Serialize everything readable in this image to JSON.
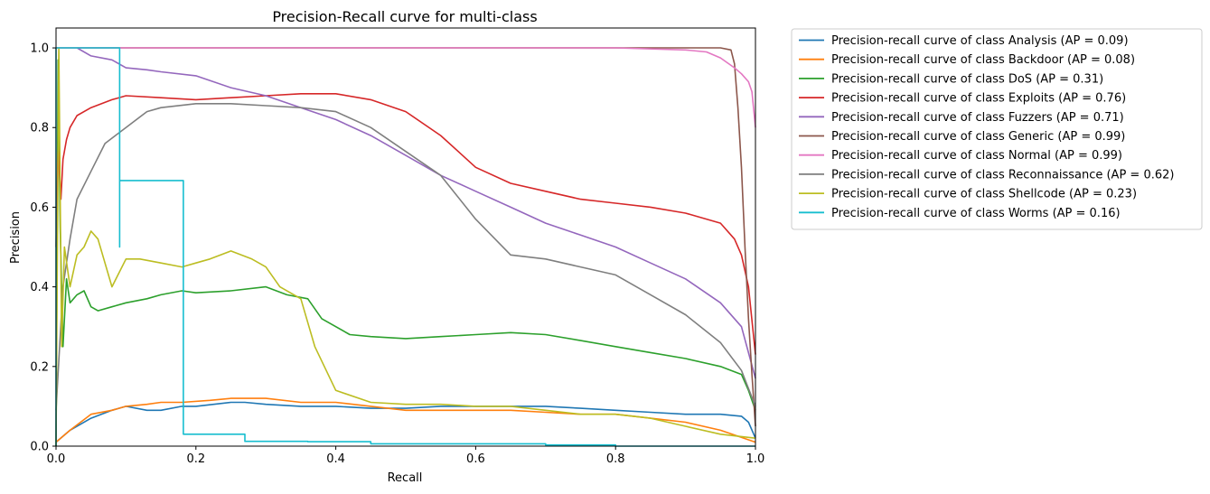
{
  "chart_data": {
    "type": "line",
    "title": "Precision-Recall curve for multi-class",
    "xlabel": "Recall",
    "ylabel": "Precision",
    "xlim": [
      0.0,
      1.0
    ],
    "ylim": [
      0.0,
      1.05
    ],
    "xticks": [
      "0.0",
      "0.2",
      "0.4",
      "0.6",
      "0.8",
      "1.0"
    ],
    "yticks": [
      "0.0",
      "0.2",
      "0.4",
      "0.6",
      "0.8",
      "1.0"
    ],
    "grid": false,
    "legend_position": "outside-upper-right",
    "series": [
      {
        "name": "Precision-recall curve of class Analysis (AP = 0.09)",
        "color": "#1f77b4",
        "x": [
          0.0,
          0.02,
          0.05,
          0.08,
          0.1,
          0.13,
          0.15,
          0.18,
          0.2,
          0.25,
          0.27,
          0.3,
          0.35,
          0.4,
          0.45,
          0.5,
          0.55,
          0.6,
          0.65,
          0.7,
          0.75,
          0.8,
          0.85,
          0.9,
          0.95,
          0.98,
          0.99,
          1.0
        ],
        "y": [
          0.01,
          0.04,
          0.07,
          0.09,
          0.1,
          0.09,
          0.09,
          0.1,
          0.1,
          0.11,
          0.11,
          0.105,
          0.1,
          0.1,
          0.095,
          0.095,
          0.1,
          0.1,
          0.1,
          0.1,
          0.095,
          0.09,
          0.085,
          0.08,
          0.08,
          0.075,
          0.06,
          0.02
        ]
      },
      {
        "name": "Precision-recall curve of class Backdoor (AP = 0.08)",
        "color": "#ff7f0e",
        "x": [
          0.0,
          0.02,
          0.05,
          0.08,
          0.1,
          0.13,
          0.15,
          0.18,
          0.22,
          0.25,
          0.28,
          0.3,
          0.35,
          0.4,
          0.45,
          0.5,
          0.55,
          0.6,
          0.65,
          0.7,
          0.75,
          0.8,
          0.85,
          0.9,
          0.95,
          1.0
        ],
        "y": [
          0.01,
          0.04,
          0.08,
          0.09,
          0.1,
          0.105,
          0.11,
          0.11,
          0.115,
          0.12,
          0.12,
          0.12,
          0.11,
          0.11,
          0.1,
          0.09,
          0.09,
          0.09,
          0.09,
          0.085,
          0.08,
          0.08,
          0.07,
          0.06,
          0.04,
          0.01
        ]
      },
      {
        "name": "Precision-recall curve of class DoS (AP = 0.31)",
        "color": "#2ca02c",
        "x": [
          0.0,
          0.003,
          0.006,
          0.01,
          0.015,
          0.02,
          0.03,
          0.04,
          0.05,
          0.06,
          0.08,
          0.1,
          0.13,
          0.15,
          0.18,
          0.2,
          0.25,
          0.3,
          0.33,
          0.36,
          0.38,
          0.42,
          0.45,
          0.5,
          0.55,
          0.6,
          0.65,
          0.7,
          0.75,
          0.8,
          0.85,
          0.9,
          0.95,
          0.98,
          0.99,
          1.0
        ],
        "y": [
          0.0,
          0.97,
          0.55,
          0.25,
          0.42,
          0.36,
          0.38,
          0.39,
          0.35,
          0.34,
          0.35,
          0.36,
          0.37,
          0.38,
          0.39,
          0.385,
          0.39,
          0.4,
          0.38,
          0.37,
          0.32,
          0.28,
          0.275,
          0.27,
          0.275,
          0.28,
          0.285,
          0.28,
          0.265,
          0.25,
          0.235,
          0.22,
          0.2,
          0.18,
          0.14,
          0.09
        ]
      },
      {
        "name": "Precision-recall curve of class Exploits (AP = 0.76)",
        "color": "#d62728",
        "x": [
          0.0,
          0.003,
          0.007,
          0.01,
          0.015,
          0.02,
          0.03,
          0.05,
          0.08,
          0.1,
          0.15,
          0.2,
          0.25,
          0.3,
          0.35,
          0.4,
          0.45,
          0.5,
          0.55,
          0.6,
          0.65,
          0.7,
          0.75,
          0.8,
          0.85,
          0.9,
          0.95,
          0.97,
          0.98,
          0.99,
          1.0
        ],
        "y": [
          0.5,
          0.75,
          0.62,
          0.72,
          0.77,
          0.8,
          0.83,
          0.85,
          0.87,
          0.88,
          0.875,
          0.87,
          0.875,
          0.88,
          0.885,
          0.885,
          0.87,
          0.84,
          0.78,
          0.7,
          0.66,
          0.64,
          0.62,
          0.61,
          0.6,
          0.585,
          0.56,
          0.52,
          0.48,
          0.4,
          0.23
        ]
      },
      {
        "name": "Precision-recall curve of class Fuzzers (AP = 0.71)",
        "color": "#9467bd",
        "x": [
          0.03,
          0.05,
          0.08,
          0.1,
          0.13,
          0.15,
          0.2,
          0.25,
          0.3,
          0.35,
          0.4,
          0.45,
          0.5,
          0.55,
          0.6,
          0.65,
          0.7,
          0.75,
          0.8,
          0.85,
          0.9,
          0.95,
          0.98,
          1.0
        ],
        "y": [
          1.0,
          0.98,
          0.97,
          0.95,
          0.945,
          0.94,
          0.93,
          0.9,
          0.88,
          0.85,
          0.82,
          0.78,
          0.73,
          0.68,
          0.64,
          0.6,
          0.56,
          0.53,
          0.5,
          0.46,
          0.42,
          0.36,
          0.3,
          0.17
        ]
      },
      {
        "name": "Precision-recall curve of class Generic (AP = 0.99)",
        "color": "#8c564b",
        "x": [
          0.0,
          0.2,
          0.4,
          0.6,
          0.8,
          0.9,
          0.95,
          0.965,
          0.97,
          0.975,
          0.98,
          0.985,
          0.99,
          0.995,
          1.0
        ],
        "y": [
          1.0,
          1.0,
          1.0,
          1.0,
          1.0,
          1.0,
          1.0,
          0.995,
          0.96,
          0.85,
          0.7,
          0.5,
          0.32,
          0.18,
          0.05
        ]
      },
      {
        "name": "Precision-recall curve of class Normal (AP = 0.99)",
        "color": "#e377c2",
        "x": [
          0.0,
          0.2,
          0.4,
          0.6,
          0.8,
          0.9,
          0.93,
          0.95,
          0.97,
          0.98,
          0.99,
          0.995,
          1.0
        ],
        "y": [
          1.0,
          1.0,
          1.0,
          1.0,
          1.0,
          0.995,
          0.99,
          0.975,
          0.95,
          0.935,
          0.915,
          0.89,
          0.8
        ]
      },
      {
        "name": "Precision-recall curve of class Reconnaissance (AP = 0.62)",
        "color": "#7f7f7f",
        "x": [
          0.0,
          0.01,
          0.02,
          0.03,
          0.05,
          0.07,
          0.1,
          0.13,
          0.15,
          0.2,
          0.25,
          0.3,
          0.35,
          0.4,
          0.45,
          0.5,
          0.55,
          0.6,
          0.65,
          0.7,
          0.75,
          0.8,
          0.85,
          0.9,
          0.95,
          0.98,
          1.0
        ],
        "y": [
          0.09,
          0.4,
          0.52,
          0.62,
          0.69,
          0.76,
          0.8,
          0.84,
          0.85,
          0.86,
          0.86,
          0.855,
          0.85,
          0.84,
          0.8,
          0.74,
          0.68,
          0.57,
          0.48,
          0.47,
          0.45,
          0.43,
          0.38,
          0.33,
          0.26,
          0.19,
          0.1
        ]
      },
      {
        "name": "Precision-recall curve of class Shellcode (AP = 0.23)",
        "color": "#bcbd22",
        "x": [
          0.0,
          0.004,
          0.008,
          0.012,
          0.02,
          0.03,
          0.04,
          0.05,
          0.06,
          0.08,
          0.1,
          0.12,
          0.15,
          0.18,
          0.2,
          0.22,
          0.25,
          0.28,
          0.3,
          0.32,
          0.35,
          0.37,
          0.4,
          0.45,
          0.5,
          0.55,
          0.6,
          0.65,
          0.7,
          0.75,
          0.8,
          0.85,
          0.9,
          0.95,
          1.0
        ],
        "y": [
          0.0,
          1.0,
          0.25,
          0.5,
          0.4,
          0.48,
          0.5,
          0.54,
          0.52,
          0.4,
          0.47,
          0.47,
          0.46,
          0.45,
          0.46,
          0.47,
          0.49,
          0.47,
          0.45,
          0.4,
          0.37,
          0.25,
          0.14,
          0.11,
          0.105,
          0.105,
          0.1,
          0.1,
          0.09,
          0.08,
          0.08,
          0.07,
          0.05,
          0.03,
          0.02
        ]
      },
      {
        "name": "Precision-recall curve of class Worms (AP = 0.16)",
        "color": "#17becf",
        "x": [
          0.0,
          0.0,
          0.091,
          0.091,
          0.091,
          0.182,
          0.182,
          0.27,
          0.27,
          0.36,
          0.36,
          0.45,
          0.45,
          0.7,
          0.7,
          0.8,
          0.8,
          1.0
        ],
        "y": [
          0.0,
          1.0,
          1.0,
          0.5,
          0.667,
          0.667,
          0.03,
          0.03,
          0.012,
          0.012,
          0.011,
          0.011,
          0.006,
          0.006,
          0.003,
          0.003,
          0.0,
          0.0
        ]
      }
    ]
  }
}
